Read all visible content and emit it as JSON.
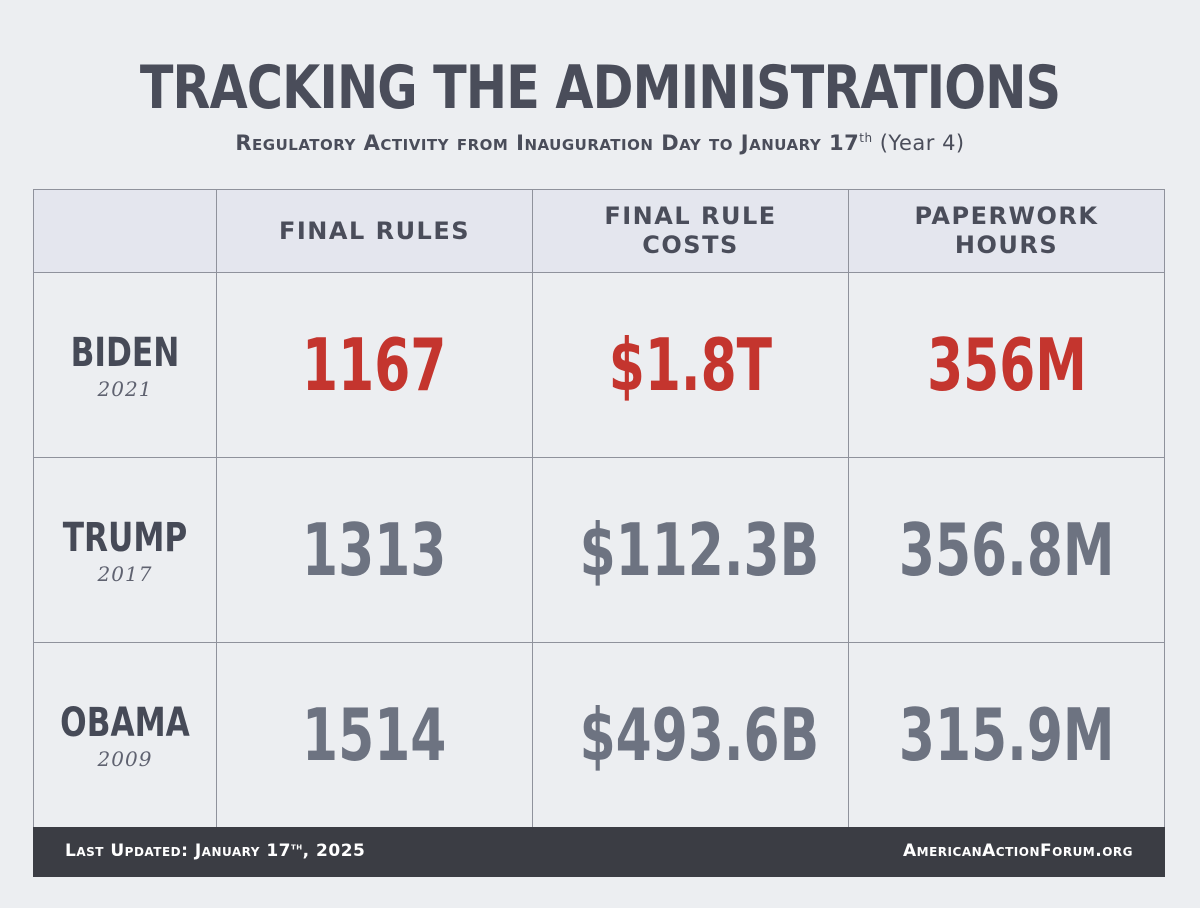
{
  "title": "TRACKING THE ADMINISTRATIONS",
  "subtitle": {
    "text": "Regulatory Activity from Inauguration Day to January 17",
    "sup": "th",
    "note": " (Year 4)"
  },
  "chart_data": {
    "type": "table",
    "columns": [
      "",
      "FINAL RULES",
      "FINAL RULE COSTS",
      "PAPERWORK HOURS"
    ],
    "rows": [
      {
        "name": "BIDEN",
        "year": "2021",
        "final_rules": "1167",
        "final_rule_costs": "$1.8T",
        "paperwork_hours": "356M",
        "highlight": true
      },
      {
        "name": "TRUMP",
        "year": "2017",
        "final_rules": "1313",
        "final_rule_costs": "$112.3B",
        "paperwork_hours": "356.8M",
        "highlight": false
      },
      {
        "name": "OBAMA",
        "year": "2009",
        "final_rules": "1514",
        "final_rule_costs": "$493.6B",
        "paperwork_hours": "315.9M",
        "highlight": false
      }
    ]
  },
  "footer": {
    "updated_prefix": "Last Updated: January 17",
    "updated_sup": "th",
    "updated_suffix": ", 2025",
    "site": "AmericanActionForum.org"
  },
  "colors": {
    "highlight": "#c4352e",
    "value": "#6d7381",
    "header_bg": "#e4e6ee",
    "footer_bg": "#3b3d44",
    "text": "#4a4d5a"
  }
}
